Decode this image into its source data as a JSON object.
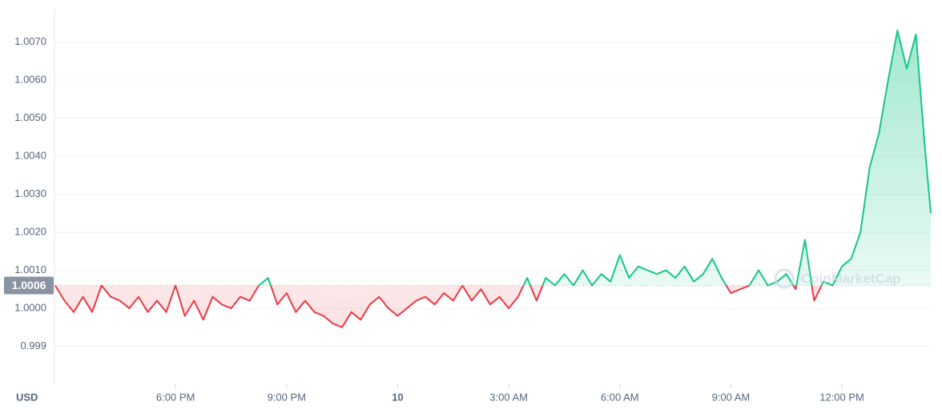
{
  "chart_data": {
    "type": "line",
    "x": [
      14.75,
      15,
      15.25,
      15.5,
      15.75,
      16,
      16.25,
      16.5,
      16.75,
      17,
      17.25,
      17.5,
      17.75,
      18,
      18.25,
      18.5,
      18.75,
      19,
      19.25,
      19.5,
      19.75,
      20,
      20.25,
      20.5,
      20.75,
      21,
      21.25,
      21.5,
      21.75,
      22,
      22.25,
      22.5,
      22.75,
      23,
      23.25,
      23.5,
      23.75,
      24,
      24.25,
      24.5,
      24.75,
      25,
      25.25,
      25.5,
      25.75,
      26,
      26.25,
      26.5,
      26.75,
      27,
      27.25,
      27.5,
      27.75,
      28,
      28.25,
      28.5,
      28.75,
      29,
      29.25,
      29.5,
      29.75,
      30,
      30.25,
      30.5,
      30.75,
      31,
      31.25,
      31.5,
      31.75,
      32,
      32.25,
      32.5,
      32.75,
      33,
      33.25,
      33.5,
      33.75,
      34,
      34.25,
      34.5,
      34.75,
      35,
      35.25,
      35.5,
      35.75,
      36,
      36.25,
      36.5,
      36.75,
      37,
      37.25,
      37.5,
      37.75,
      38,
      38.25,
      38.4
    ],
    "series": [
      {
        "name": "Price",
        "color_up": "#16c784",
        "color_down": "#ea3943",
        "values": [
          1.0006,
          1.0002,
          0.9999,
          1.0003,
          0.9999,
          1.0006,
          1.0003,
          1.0002,
          1.0,
          1.0003,
          0.9999,
          1.0002,
          0.9999,
          1.0006,
          0.9998,
          1.0002,
          0.9997,
          1.0003,
          1.0001,
          1.0,
          1.0003,
          1.0002,
          1.0006,
          1.0008,
          1.0001,
          1.0004,
          0.9999,
          1.0002,
          0.9999,
          0.9998,
          0.9996,
          0.9995,
          0.9999,
          0.9997,
          1.0001,
          1.0003,
          1.0,
          0.9998,
          1.0,
          1.0002,
          1.0003,
          1.0001,
          1.0004,
          1.0002,
          1.0006,
          1.0002,
          1.0005,
          1.0001,
          1.0003,
          1.0,
          1.0003,
          1.0008,
          1.0002,
          1.0008,
          1.0006,
          1.0009,
          1.0006,
          1.001,
          1.0006,
          1.0009,
          1.0007,
          1.0014,
          1.0008,
          1.0011,
          1.001,
          1.0009,
          1.001,
          1.0008,
          1.0011,
          1.0007,
          1.0009,
          1.0013,
          1.0008,
          1.0004,
          1.0005,
          1.0006,
          1.001,
          1.0006,
          1.0007,
          1.0009,
          1.0005,
          1.0018,
          1.0002,
          1.0007,
          1.0006,
          1.0011,
          1.0013,
          1.002,
          1.0037,
          1.0046,
          1.006,
          1.0073,
          1.0063,
          1.0072,
          1.0041,
          1.0025
        ]
      }
    ],
    "reference": {
      "value": 1.0006,
      "label": "1.0006"
    },
    "xlim": [
      14.73,
      38.4
    ],
    "xticks": [
      {
        "value": 18,
        "label": "6:00 PM"
      },
      {
        "value": 21,
        "label": "9:00 PM"
      },
      {
        "value": 24,
        "label": "10"
      },
      {
        "value": 27,
        "label": "3:00 AM"
      },
      {
        "value": 30,
        "label": "6:00 AM"
      },
      {
        "value": 33,
        "label": "9:00 AM"
      },
      {
        "value": 36,
        "label": "12:00 PM"
      }
    ],
    "ylim": [
      0.998,
      1.00785
    ],
    "yticks": [
      {
        "value": 0.999,
        "label": "0.999"
      },
      {
        "value": 1.0,
        "label": "1.0000"
      },
      {
        "value": 1.001,
        "label": "1.0010"
      },
      {
        "value": 1.002,
        "label": "1.0020"
      },
      {
        "value": 1.003,
        "label": "1.0030"
      },
      {
        "value": 1.004,
        "label": "1.0040"
      },
      {
        "value": 1.005,
        "label": "1.0050"
      },
      {
        "value": 1.006,
        "label": "1.0060"
      },
      {
        "value": 1.007,
        "label": "1.0070"
      }
    ],
    "currency": "USD",
    "watermark": "CoinMarketCap",
    "grid": true
  }
}
